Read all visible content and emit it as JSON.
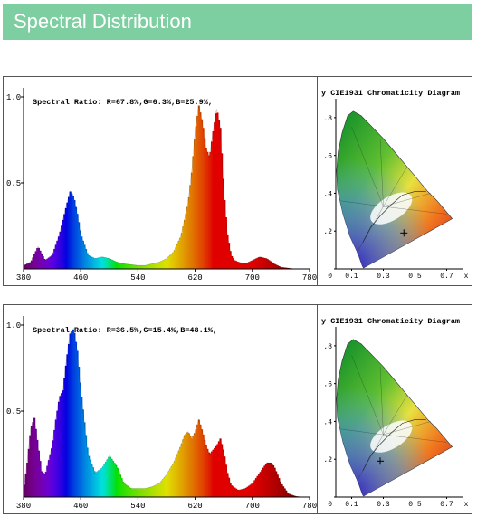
{
  "page": {
    "title": "Spectral Distribution"
  },
  "charts": [
    {
      "ratio_label": "Spectral Ratio:  R=67.8%,G=6.3%,B=25.9%,",
      "chart_data": {
        "type": "area",
        "title": "",
        "xlabel": "",
        "ylabel": "",
        "xlim": [
          380,
          780
        ],
        "ylim": [
          0,
          1.0
        ],
        "x_ticks": [
          "380",
          "460",
          "540",
          "620",
          "700",
          "780"
        ],
        "y_ticks": [
          "1.0",
          "0.5"
        ],
        "grid": false,
        "series": [
          {
            "x": [
              380,
              390,
              400,
              405,
              410,
              420,
              430,
              440,
              445,
              450,
              455,
              460,
              470,
              480,
              490,
              500,
              510,
              520,
              530,
              540,
              550,
              560,
              570,
              580,
              590,
              600,
              610,
              615,
              620,
              625,
              630,
              635,
              640,
              645,
              650,
              655,
              660,
              665,
              670,
              675,
              680,
              690,
              700,
              710,
              720,
              730,
              740,
              750,
              760,
              770,
              780
            ],
            "y": [
              0.02,
              0.04,
              0.13,
              0.09,
              0.05,
              0.08,
              0.2,
              0.37,
              0.45,
              0.42,
              0.32,
              0.2,
              0.08,
              0.06,
              0.07,
              0.06,
              0.04,
              0.03,
              0.025,
              0.02,
              0.02,
              0.03,
              0.04,
              0.06,
              0.1,
              0.19,
              0.38,
              0.56,
              0.8,
              0.95,
              0.85,
              0.7,
              0.65,
              0.8,
              0.93,
              0.82,
              0.45,
              0.2,
              0.08,
              0.05,
              0.04,
              0.03,
              0.05,
              0.07,
              0.06,
              0.03,
              0.01,
              0.005,
              0.0,
              0.0,
              0.0
            ]
          }
        ]
      },
      "cie": {
        "title": "y  CIE1931 Chromaticity Diagram",
        "y_ticks": [
          ".8",
          ".6",
          ".4",
          ".2",
          "0"
        ],
        "x_ticks": [
          "0.1",
          "0.3",
          "0.5",
          "0.7",
          "x"
        ],
        "point": {
          "x": 0.43,
          "y": 0.19
        }
      }
    },
    {
      "ratio_label": "Spectral Ratio:  R=36.5%,G=15.4%,B=48.1%,",
      "chart_data": {
        "type": "area",
        "title": "",
        "xlabel": "",
        "ylabel": "",
        "xlim": [
          380,
          780
        ],
        "ylim": [
          0,
          1.0
        ],
        "x_ticks": [
          "380",
          "460",
          "540",
          "620",
          "700",
          "780"
        ],
        "y_ticks": [
          "1.0",
          "0.5"
        ],
        "grid": false,
        "series": [
          {
            "x": [
              380,
              385,
              390,
              395,
              400,
              405,
              410,
              420,
              425,
              430,
              435,
              440,
              445,
              450,
              455,
              460,
              470,
              480,
              490,
              500,
              510,
              520,
              530,
              540,
              550,
              560,
              570,
              580,
              590,
              600,
              605,
              610,
              615,
              620,
              625,
              630,
              635,
              640,
              650,
              655,
              660,
              665,
              670,
              680,
              690,
              700,
              710,
              720,
              725,
              730,
              740,
              750,
              760,
              770,
              780
            ],
            "y": [
              0.04,
              0.2,
              0.4,
              0.46,
              0.3,
              0.15,
              0.13,
              0.3,
              0.45,
              0.58,
              0.62,
              0.8,
              0.95,
              0.98,
              0.85,
              0.62,
              0.25,
              0.14,
              0.17,
              0.24,
              0.18,
              0.08,
              0.05,
              0.05,
              0.05,
              0.06,
              0.08,
              0.13,
              0.2,
              0.3,
              0.36,
              0.38,
              0.34,
              0.38,
              0.45,
              0.38,
              0.3,
              0.25,
              0.3,
              0.34,
              0.26,
              0.14,
              0.07,
              0.04,
              0.05,
              0.08,
              0.14,
              0.2,
              0.2,
              0.18,
              0.08,
              0.02,
              0.005,
              0.0,
              0.0
            ]
          }
        ]
      },
      "cie": {
        "title": "y  CIE1931 Chromaticity Diagram",
        "y_ticks": [
          ".8",
          ".6",
          ".4",
          ".2",
          "0"
        ],
        "x_ticks": [
          "0.1",
          "0.3",
          "0.5",
          "0.7",
          "x"
        ],
        "point": {
          "x": 0.28,
          "y": 0.19
        }
      }
    }
  ]
}
